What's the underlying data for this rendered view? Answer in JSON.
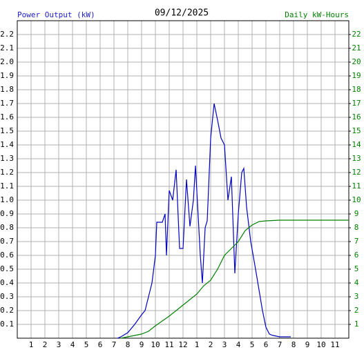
{
  "chart_data": {
    "type": "line",
    "title": "09/12/2025",
    "y_label": "Power Output (kW)",
    "y2_label": "Daily kW-Hours",
    "xlim": [
      0,
      24
    ],
    "xticks": [
      1,
      2,
      3,
      4,
      5,
      6,
      7,
      8,
      9,
      10,
      11,
      12,
      {
        "value": 13,
        "label": "1"
      },
      {
        "value": 14,
        "label": "2"
      },
      {
        "value": 15,
        "label": "3"
      },
      {
        "value": 16,
        "label": "4"
      },
      {
        "value": 17,
        "label": "5"
      },
      {
        "value": 18,
        "label": "6"
      },
      {
        "value": 19,
        "label": "7"
      },
      {
        "value": 20,
        "label": "8"
      },
      {
        "value": 21,
        "label": "9"
      },
      {
        "value": 22,
        "label": "10"
      },
      {
        "value": 23,
        "label": "11"
      }
    ],
    "ylim": [
      0,
      2.3
    ],
    "yticks": [
      0.1,
      0.2,
      0.3,
      0.4,
      0.5,
      0.6,
      0.7,
      0.8,
      0.9,
      {
        "value": 1,
        "label": "1.0"
      },
      1.1,
      1.2,
      1.3,
      1.4,
      1.5,
      1.6,
      1.7,
      1.8,
      1.9,
      {
        "value": 2,
        "label": "2.0"
      },
      2.1,
      2.2
    ],
    "y2lim": [
      0,
      23
    ],
    "y2ticks": [
      1,
      2,
      3,
      4,
      5,
      6,
      7,
      8,
      9,
      10,
      11,
      12,
      13,
      14,
      15,
      16,
      17,
      18,
      19,
      20,
      21,
      22
    ],
    "grid": true,
    "y_label_color": "#2020d0",
    "y2_label_color": "#008000",
    "series": [
      {
        "color": "#0000c0",
        "axis": "y",
        "x": [
          7.25,
          7.5,
          8,
          8.5,
          9,
          9.25,
          9.5,
          9.75,
          10,
          10.1,
          10.5,
          10.7,
          10.8,
          11,
          11.25,
          11.5,
          11.75,
          12,
          12.25,
          12.5,
          12.75,
          12.9,
          13.25,
          13.4,
          13.6,
          13.75,
          14,
          14.25,
          14.5,
          14.75,
          15,
          15.25,
          15.5,
          15.75,
          16,
          16.25,
          16.4,
          16.6,
          16.9,
          17.25,
          17.5,
          17.75,
          18,
          18.25,
          18.5,
          19,
          19.8
        ],
        "values": [
          0,
          0.01,
          0.04,
          0.1,
          0.17,
          0.2,
          0.3,
          0.4,
          0.6,
          0.84,
          0.84,
          0.9,
          0.6,
          1.07,
          1.0,
          1.22,
          0.65,
          0.65,
          1.15,
          0.81,
          1.0,
          1.25,
          0.6,
          0.4,
          0.8,
          0.85,
          1.45,
          1.7,
          1.58,
          1.45,
          1.4,
          1.0,
          1.17,
          0.47,
          0.9,
          1.2,
          1.23,
          0.95,
          0.7,
          0.5,
          0.35,
          0.2,
          0.08,
          0.03,
          0.02,
          0.01,
          0.01
        ]
      },
      {
        "color": "#008000",
        "axis": "y2",
        "x": [
          7.5,
          8,
          9,
          9.5,
          10,
          11,
          12,
          13,
          13.5,
          14,
          14.5,
          15,
          15.5,
          16,
          16.5,
          17,
          17.5,
          18,
          19,
          24
        ],
        "values": [
          0,
          0.1,
          0.3,
          0.5,
          0.9,
          1.6,
          2.4,
          3.2,
          3.8,
          4.2,
          5.0,
          6.0,
          6.5,
          7.0,
          7.8,
          8.2,
          8.45,
          8.5,
          8.55,
          8.55
        ]
      }
    ]
  }
}
